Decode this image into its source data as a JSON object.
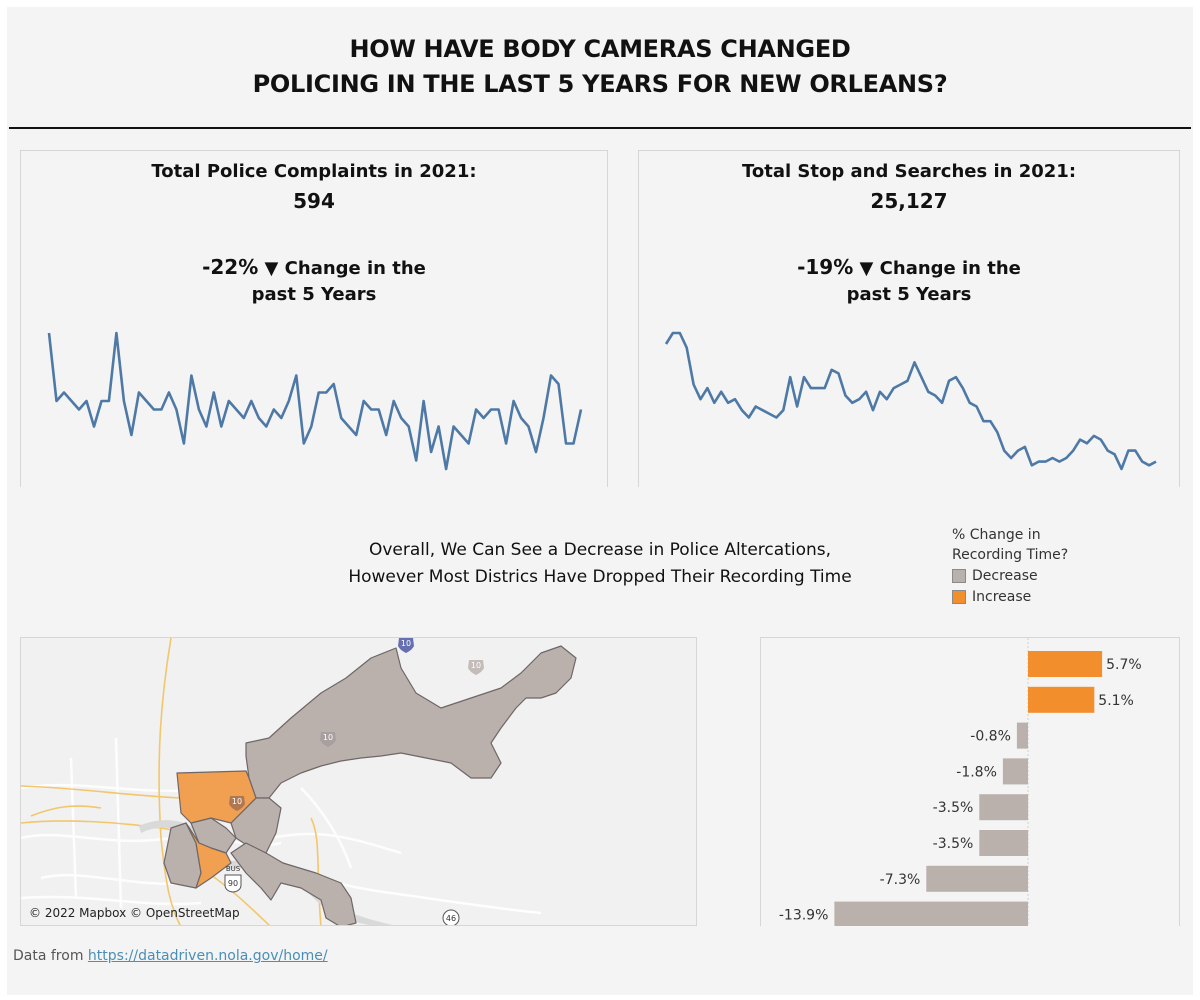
{
  "title": {
    "line1": "HOW HAVE BODY CAMERAS CHANGED",
    "line2": "POLICING IN THE LAST 5 YEARS FOR NEW ORLEANS?"
  },
  "kpis": {
    "complaints": {
      "heading": "Total Police Complaints in 2021:",
      "value": "594",
      "change_pct": "-22%",
      "change_arrow": "▼",
      "change_text": "Change in the",
      "change_sub": "past 5 Years"
    },
    "stops": {
      "heading": "Total Stop and Searches in 2021:",
      "value": "25,127",
      "change_pct": "-19%",
      "change_arrow": "▼",
      "change_text": "Change in the",
      "change_sub": "past 5 Years"
    }
  },
  "subtitle": {
    "line1": "Overall, We Can See a Decrease in Police Altercations,",
    "line2": "However Most Districs Have Dropped Their Recording Time"
  },
  "legend": {
    "title_line1": "% Change in",
    "title_line2": "Recording Time?",
    "items": [
      {
        "label": "Decrease",
        "color": "#bab0ac"
      },
      {
        "label": "Increase",
        "color": "#f28e2b"
      }
    ]
  },
  "map": {
    "attribution": "© 2022 Mapbox © OpenStreetMap",
    "district_colors": {
      "decrease": "#bab0ac",
      "increase": "#f0a050"
    },
    "shields": [
      "10",
      "10",
      "10",
      "10",
      "90",
      "46",
      "BUS"
    ]
  },
  "footer": {
    "prefix": "Data from",
    "link_text": "https://datadriven.nola.gov/home/"
  },
  "chart_data": [
    {
      "type": "line",
      "series": [
        {
          "values": [
            58,
            50,
            51,
            50,
            49,
            50,
            47,
            50,
            50,
            58,
            50,
            46,
            51,
            50,
            49,
            49,
            51,
            49,
            45,
            53,
            49,
            47,
            51,
            47,
            50,
            49,
            48,
            50,
            48,
            47,
            49,
            48,
            50,
            53,
            45,
            47,
            51,
            51,
            52,
            48,
            47,
            46,
            50,
            49,
            49,
            46,
            50,
            48,
            47,
            43,
            50,
            44,
            47,
            42,
            47,
            46,
            45,
            49,
            48,
            49,
            49,
            45,
            50,
            48,
            47,
            44,
            48,
            53,
            52,
            45,
            45,
            49
          ]
        }
      ],
      "color": "#4e79a7"
    },
    {
      "type": "line",
      "series": [
        {
          "values": [
            75,
            78,
            78,
            74,
            64,
            60,
            63,
            59,
            62,
            59,
            60,
            57,
            55,
            58,
            57,
            56,
            55,
            57,
            66,
            58,
            66,
            63,
            63,
            63,
            68,
            67,
            61,
            59,
            60,
            62,
            57,
            62,
            60,
            63,
            64,
            65,
            70,
            66,
            62,
            61,
            59,
            65,
            66,
            63,
            59,
            58,
            54,
            54,
            51,
            46,
            44,
            46,
            47,
            42,
            43,
            43,
            44,
            43,
            44,
            46,
            49,
            48,
            50,
            49,
            46,
            45,
            41,
            46,
            46,
            43,
            42,
            43
          ]
        }
      ],
      "color": "#4e79a7"
    },
    {
      "type": "bar",
      "orientation": "horizontal",
      "values": [
        5.7,
        5.1,
        -0.8,
        -1.8,
        -3.5,
        -3.5,
        -7.3,
        -13.9
      ],
      "labels": [
        "5.7%",
        "5.1%",
        "-0.8%",
        "-1.8%",
        "-3.5%",
        "-3.5%",
        "-7.3%",
        "-13.9%"
      ],
      "colors": {
        "positive": "#f28e2b",
        "negative": "#bab0ac"
      }
    }
  ]
}
